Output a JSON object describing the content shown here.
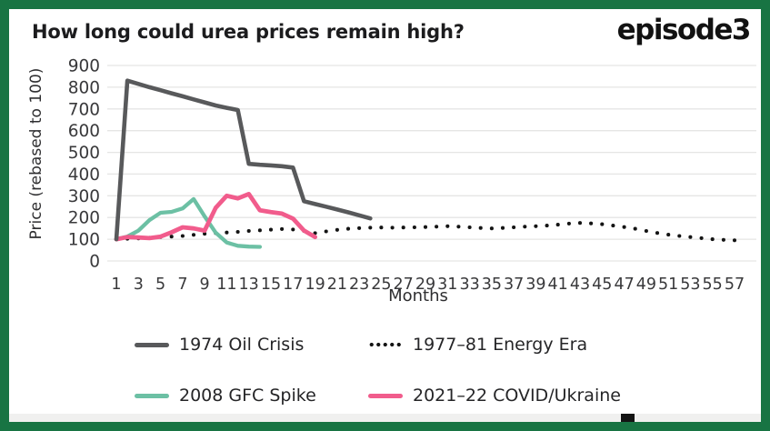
{
  "header": {
    "title": "How long could urea prices remain high?",
    "logo": "episode3"
  },
  "colors": {
    "frame_green": "#187443",
    "card_bg": "#ffffff",
    "title_text": "#1c1c1e",
    "axis_text": "#39393b",
    "gridline": "#e5e5e4",
    "oil_crisis": "#58595b",
    "energy_era": "#141414",
    "gfc_spike": "#6cc0a4",
    "covid_ukraine": "#f15c8c"
  },
  "chart_data": {
    "type": "line",
    "title": "How long could urea prices remain high?",
    "xlabel": "Months",
    "ylabel": "Price (rebased to 100)",
    "ylim": [
      0,
      900
    ],
    "xlim": [
      1,
      57
    ],
    "y_ticks": [
      0,
      100,
      200,
      300,
      400,
      500,
      600,
      700,
      800,
      900
    ],
    "x_ticks": [
      1,
      3,
      5,
      7,
      9,
      11,
      13,
      15,
      17,
      19,
      21,
      23,
      25,
      27,
      29,
      31,
      33,
      35,
      37,
      39,
      41,
      43,
      45,
      47,
      49,
      51,
      53,
      55,
      57
    ],
    "grid": "horizontal",
    "legend_position": "bottom",
    "series": [
      {
        "name": "1974 Oil Crisis",
        "style": "solid",
        "color": "#58595b",
        "stroke_width": 4.6,
        "x_start": 1,
        "values": [
          100,
          830,
          815,
          800,
          786,
          772,
          758,
          744,
          730,
          716,
          705,
          695,
          447,
          443,
          440,
          436,
          430,
          275,
          262,
          250,
          237,
          224,
          210,
          196
        ]
      },
      {
        "name": "1977–81 Energy Era",
        "style": "dotted",
        "color": "#141414",
        "stroke_width": 4,
        "x_start": 1,
        "values": [
          100,
          102,
          104,
          107,
          110,
          112,
          115,
          120,
          125,
          128,
          131,
          134,
          138,
          141,
          144,
          147,
          145,
          138,
          128,
          136,
          143,
          148,
          151,
          153,
          154,
          153,
          154,
          155,
          156,
          158,
          160,
          158,
          155,
          152,
          150,
          152,
          155,
          158,
          160,
          163,
          167,
          172,
          175,
          173,
          169,
          163,
          156,
          148,
          138,
          129,
          121,
          115,
          110,
          105,
          100,
          97,
          95
        ]
      },
      {
        "name": "2008 GFC Spike",
        "style": "solid",
        "color": "#6cc0a4",
        "stroke_width": 4.3,
        "x_start": 1,
        "values": [
          100,
          112,
          140,
          188,
          222,
          226,
          242,
          285,
          205,
          130,
          85,
          70,
          66,
          65
        ]
      },
      {
        "name": "2021–22 COVID/Ukraine",
        "style": "solid",
        "color": "#f15c8c",
        "stroke_width": 4.8,
        "x_start": 1,
        "values": [
          100,
          110,
          108,
          105,
          112,
          132,
          155,
          150,
          140,
          245,
          300,
          288,
          308,
          233,
          225,
          218,
          195,
          140,
          110
        ]
      }
    ]
  }
}
